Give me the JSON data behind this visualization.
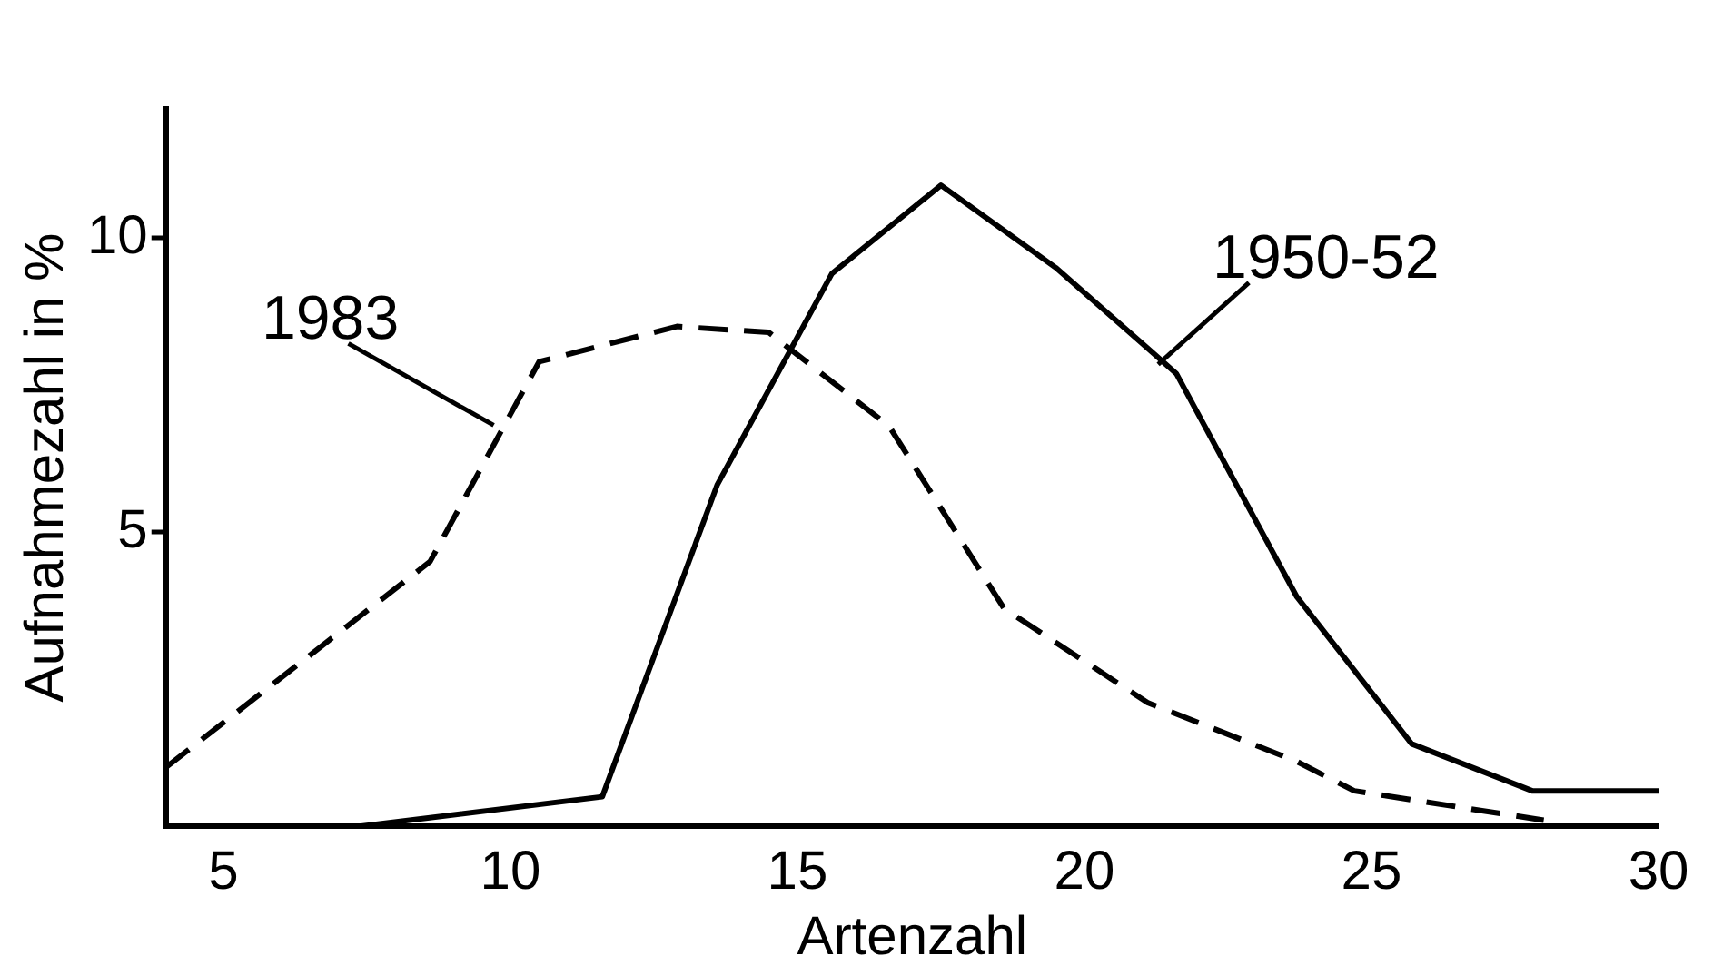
{
  "chart_data": {
    "type": "line",
    "xlabel": "Artenzahl",
    "ylabel": "Aufnahmezahl in %",
    "xlim": [
      4,
      30
    ],
    "xticks": [
      5,
      10,
      15,
      20,
      25,
      30
    ],
    "ylim": [
      0,
      12.2
    ],
    "yticks": [
      5,
      10
    ],
    "grid": false,
    "legend": false,
    "marker": "none",
    "series": [
      {
        "name": "1983",
        "color": "#000000",
        "line_style": "dashed",
        "x": [
          4,
          8.6,
          10.5,
          12.9,
          14.5,
          16.6,
          18.6,
          21.1,
          23.7,
          24.7,
          28
        ],
        "values": [
          1,
          4.5,
          7.9,
          8.5,
          8.4,
          6.8,
          3.7,
          2.1,
          1.1,
          0.6,
          0.1
        ]
      },
      {
        "name": "1950-52",
        "color": "#000000",
        "line_style": "solid",
        "x": [
          7.4,
          11.6,
          13.6,
          15.6,
          17.5,
          19.5,
          21.6,
          23.7,
          25.7,
          27.8,
          30
        ],
        "values": [
          0,
          0.5,
          5.8,
          9.4,
          10.9,
          9.5,
          7.7,
          3.9,
          1.4,
          0.6,
          0.6
        ]
      }
    ]
  }
}
